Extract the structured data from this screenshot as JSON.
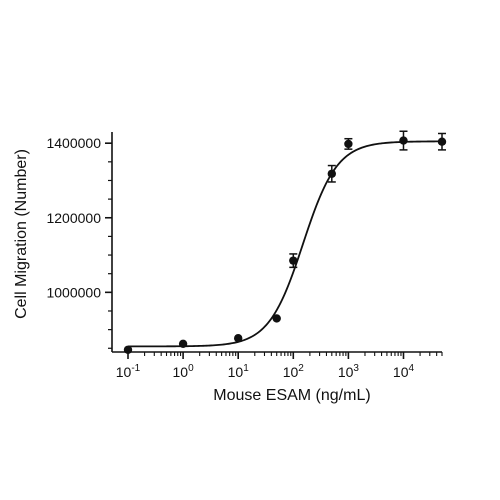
{
  "chart_data": {
    "type": "scatter",
    "title": "",
    "xlabel": "Mouse ESAM (ng/mL)",
    "ylabel": "Cell Migration (Number)",
    "x_scale": "log",
    "xlim": [
      0.1,
      50000
    ],
    "ylim": [
      840000,
      1430000
    ],
    "grid": false,
    "legend": "none",
    "x_ticks": [
      {
        "value": 0.1,
        "base": "10",
        "exp": "-1"
      },
      {
        "value": 1,
        "base": "10",
        "exp": "0"
      },
      {
        "value": 10,
        "base": "10",
        "exp": "1"
      },
      {
        "value": 100,
        "base": "10",
        "exp": "2"
      },
      {
        "value": 1000,
        "base": "10",
        "exp": "3"
      },
      {
        "value": 10000,
        "base": "10",
        "exp": "4"
      }
    ],
    "y_ticks": [
      {
        "value": 1000000,
        "label": "1000000"
      },
      {
        "value": 1200000,
        "label": "1200000"
      },
      {
        "value": 1400000,
        "label": "1400000"
      }
    ],
    "points": [
      {
        "x": 0.1,
        "y": 846000,
        "err": 0
      },
      {
        "x": 1,
        "y": 862000,
        "err": 0
      },
      {
        "x": 10,
        "y": 877000,
        "err": 0
      },
      {
        "x": 50,
        "y": 930000,
        "err": 0
      },
      {
        "x": 100,
        "y": 1085000,
        "err": 18000
      },
      {
        "x": 500,
        "y": 1318000,
        "err": 22000
      },
      {
        "x": 1000,
        "y": 1398000,
        "err": 14000
      },
      {
        "x": 10000,
        "y": 1407000,
        "err": 25000
      },
      {
        "x": 50000,
        "y": 1404000,
        "err": 22000
      }
    ],
    "fit_curve": {
      "model": "4PL",
      "bottom": 855000,
      "top": 1405000,
      "ec50": 150,
      "hill": 1.4
    },
    "colors": {
      "marker": "#111111",
      "line": "#111111",
      "axis": "#111111"
    }
  }
}
